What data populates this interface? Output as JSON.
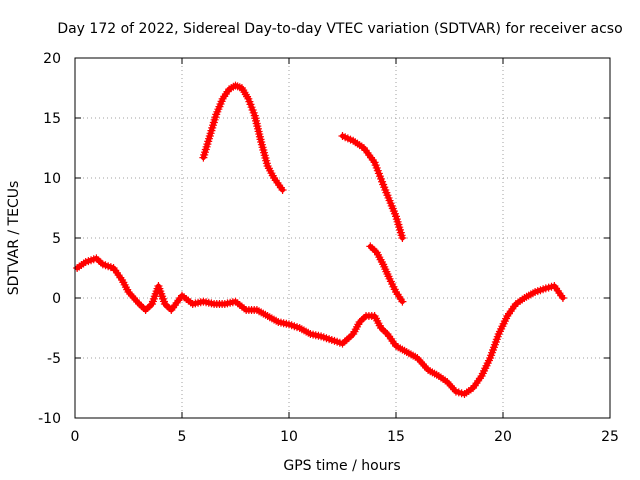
{
  "chart_data": {
    "type": "scatter",
    "title": "Day 172 of 2022, Sidereal Day-to-day VTEC variation (SDTVAR) for receiver acso",
    "xlabel": "GPS time / hours",
    "ylabel": "SDTVAR / TECUs",
    "xlim": [
      0,
      25
    ],
    "ylim": [
      -10,
      20
    ],
    "xticks": [
      0,
      5,
      10,
      15,
      20,
      25
    ],
    "yticks": [
      -10,
      -5,
      0,
      5,
      10,
      15,
      20
    ],
    "grid": true,
    "marker": "+",
    "color": "#ff0000",
    "series": [
      {
        "name": "main-trace",
        "x": [
          0.1,
          0.5,
          1.0,
          1.3,
          1.8,
          2.2,
          2.5,
          3.0,
          3.3,
          3.6,
          3.9,
          4.2,
          4.5,
          5.0,
          5.5,
          6.0,
          6.5,
          7.0,
          7.5,
          8.0,
          8.5,
          9.0,
          9.5,
          10.0,
          10.5,
          11.0,
          11.5,
          12.0,
          12.5,
          13.0,
          13.3,
          13.6,
          14.0,
          14.3,
          14.6,
          15.0,
          15.5,
          16.0,
          16.5,
          17.0,
          17.4,
          17.8,
          18.2,
          18.6,
          19.0,
          19.4,
          19.8,
          20.2,
          20.6,
          21.0,
          21.5,
          22.0,
          22.4,
          22.8
        ],
        "y": [
          2.5,
          3.0,
          3.3,
          2.8,
          2.5,
          1.5,
          0.5,
          -0.5,
          -1.0,
          -0.5,
          1.0,
          -0.5,
          -1.0,
          0.2,
          -0.5,
          -0.3,
          -0.5,
          -0.5,
          -0.3,
          -1.0,
          -1.0,
          -1.5,
          -2.0,
          -2.2,
          -2.5,
          -3.0,
          -3.2,
          -3.5,
          -3.8,
          -3.0,
          -2.0,
          -1.5,
          -1.5,
          -2.5,
          -3.0,
          -4.0,
          -4.5,
          -5.0,
          -6.0,
          -6.5,
          -7.0,
          -7.8,
          -8.0,
          -7.5,
          -6.5,
          -5.0,
          -3.0,
          -1.5,
          -0.5,
          0.0,
          0.5,
          0.8,
          1.0,
          0.0
        ]
      },
      {
        "name": "arc-6-to-10h",
        "x": [
          6.0,
          6.3,
          6.6,
          6.9,
          7.2,
          7.5,
          7.8,
          8.1,
          8.4,
          8.7,
          9.0,
          9.3,
          9.7
        ],
        "y": [
          11.7,
          13.5,
          15.3,
          16.6,
          17.4,
          17.7,
          17.5,
          16.6,
          15.2,
          13.0,
          11.0,
          10.0,
          9.0
        ]
      },
      {
        "name": "descent-12-to-15h",
        "x": [
          12.5,
          13.0,
          13.5,
          14.0,
          14.5,
          15.0,
          15.3
        ],
        "y": [
          13.5,
          13.1,
          12.5,
          11.3,
          9.0,
          6.8,
          5.0
        ]
      },
      {
        "name": "descent-14-to-15h",
        "x": [
          13.8,
          14.1,
          14.4,
          14.7,
          15.0,
          15.3
        ],
        "y": [
          4.3,
          3.8,
          2.8,
          1.6,
          0.5,
          -0.3
        ]
      }
    ]
  }
}
